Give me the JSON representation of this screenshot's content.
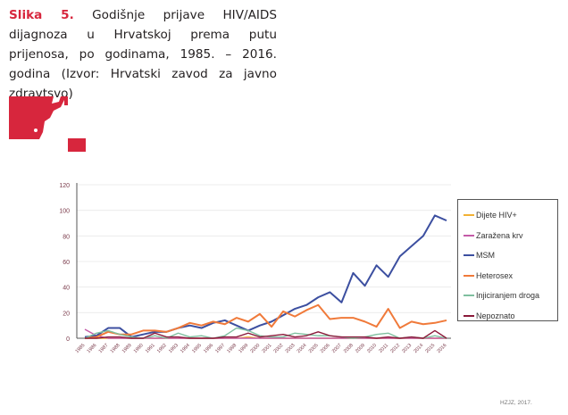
{
  "caption": {
    "label": "Slika 5.",
    "text": " Godišnje prijave HIV/AIDS dijagnoza u Hrvatskoj prema putu prijenosa, po godinama, 1985. – 2016. godina (Izvor: Hrvatski zavod za javno zdravtsvo)"
  },
  "footer": "HZJZ, 2017.",
  "brand_color": "#d7263d",
  "chart_data": {
    "type": "line",
    "title": "",
    "xlabel": "",
    "ylabel": "",
    "ylim": [
      0,
      120
    ],
    "yticks": [
      "0",
      "20",
      "40",
      "60",
      "80",
      "100",
      "120"
    ],
    "grid": true,
    "legend_position": "right",
    "x": [
      "1985",
      "1986",
      "1987",
      "1988",
      "1989",
      "1990",
      "1991",
      "1992",
      "1993",
      "1994",
      "1995",
      "1996",
      "1997",
      "1998",
      "1999",
      "2000",
      "2001",
      "2002",
      "2003",
      "2004",
      "2005",
      "2006",
      "2007",
      "2008",
      "2009",
      "2010",
      "2011",
      "2012",
      "2013",
      "2014",
      "2015",
      "2016"
    ],
    "series": [
      {
        "name": "Dijete HIV+",
        "color": "#f2b134",
        "values": [
          0,
          0,
          0,
          0,
          0,
          0,
          0,
          0,
          0,
          0,
          0,
          0,
          0,
          0,
          1,
          0,
          0,
          0,
          0,
          0,
          0,
          0,
          0,
          0,
          0,
          0,
          0,
          0,
          0,
          0,
          0,
          0
        ]
      },
      {
        "name": "Zaražena krv",
        "color": "#c45ba8",
        "values": [
          7,
          2,
          0,
          0,
          0,
          0,
          0,
          0,
          0,
          0,
          0,
          0,
          0,
          0,
          0,
          0,
          0,
          0,
          0,
          0,
          0,
          0,
          0,
          0,
          0,
          0,
          0,
          0,
          0,
          0,
          0,
          0
        ]
      },
      {
        "name": "MSM",
        "color": "#3c4fa0",
        "values": [
          1,
          2,
          8,
          8,
          1,
          3,
          5,
          5,
          8,
          10,
          8,
          12,
          14,
          10,
          6,
          10,
          13,
          18,
          23,
          26,
          32,
          36,
          28,
          51,
          41,
          57,
          48,
          64,
          72,
          80,
          96,
          92
        ]
      },
      {
        "name": "Heterosex",
        "color": "#f07a3a",
        "values": [
          0,
          1,
          5,
          3,
          3,
          6,
          6,
          5,
          8,
          12,
          10,
          13,
          11,
          16,
          13,
          19,
          9,
          21,
          17,
          22,
          26,
          15,
          16,
          16,
          13,
          9,
          23,
          8,
          13,
          11,
          12,
          14
        ]
      },
      {
        "name": "Injiciranjem droga",
        "color": "#7fbf9f",
        "values": [
          0,
          4,
          6,
          3,
          1,
          0,
          2,
          0,
          4,
          1,
          2,
          0,
          2,
          8,
          6,
          2,
          1,
          1,
          4,
          3,
          2,
          2,
          1,
          0,
          1,
          3,
          4,
          0,
          1,
          0,
          2,
          0
        ]
      },
      {
        "name": "Nepoznato",
        "color": "#8b1a3a",
        "values": [
          0,
          0,
          1,
          1,
          0,
          0,
          4,
          1,
          1,
          0,
          0,
          0,
          1,
          1,
          4,
          1,
          2,
          3,
          1,
          2,
          5,
          2,
          1,
          1,
          1,
          0,
          1,
          0,
          1,
          0,
          6,
          0
        ]
      }
    ]
  }
}
